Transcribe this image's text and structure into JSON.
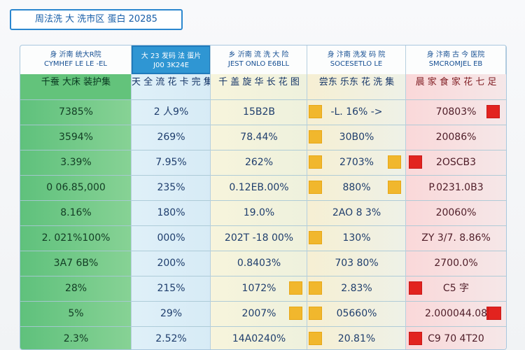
{
  "page": {
    "title": "周法洗 大 洗市区 蛋白 20285"
  },
  "chart_data": {
    "type": "table",
    "title": "周法洗 大 洗市区 蛋白 20285",
    "columns": [
      {
        "header": "身 沂南 统大R院",
        "subheader": "CYMHEF LE LE -EL",
        "group_label": "千蚕 大床 装护集"
      },
      {
        "header": "大 23 发码 法 蛋片",
        "subheader": "J00 3K24E",
        "group_label": "天 全 流 花 卡 完 集"
      },
      {
        "header": "乡 沂南 流 洗 大 险",
        "subheader": "JEST ONLO E6BLL",
        "group_label": "千 盖 旋 华 长 花 图"
      },
      {
        "header": "身 汴南 洗发 码 院",
        "subheader": "SOCESETLO LE",
        "group_label": "尝东 乐东 花 洗 集"
      },
      {
        "header": "身 汴南 古 今 医院",
        "subheader": "SMCROMJEL EB",
        "group_label": "晨 家 食 家 花 七 足"
      }
    ],
    "rows": [
      [
        "7385%",
        "2 人9%",
        "15B2B",
        "-L. 16% ->",
        "70803%"
      ],
      [
        "3594%",
        "269%",
        "78.44%",
        "30B0%",
        "20086%"
      ],
      [
        "3.39%",
        "7.95%",
        "262%",
        "2703%",
        "2OSCB3"
      ],
      [
        "0 06.85,000",
        "235%",
        "0.12EB.00%",
        "880%",
        "P.0231.0B3"
      ],
      [
        "8.16%",
        "180%",
        "19.0%",
        "2AO 8 3%",
        "20060%"
      ],
      [
        "2. 021%100%",
        "000%",
        "202T -18 00%",
        "130%",
        "ZY 3/7. 8.86%"
      ],
      [
        "3A7 6B%",
        "200%",
        "0.8403%",
        "703 80%",
        "2700.0%"
      ],
      [
        "28%",
        "215%",
        "1072%",
        "2.83%",
        "C5 字"
      ],
      [
        "5%",
        "29%",
        "2007%",
        "05660%",
        "2.000044.08"
      ],
      [
        "2.3%",
        "2.52%",
        "14A0240%",
        "20.81%",
        "C9 70 4T20"
      ]
    ],
    "highlighted_column": 1,
    "markers": [
      {
        "row": 0,
        "column": 3,
        "color": "#f1b72d"
      },
      {
        "row": 0,
        "column": 4,
        "color": "#e2231f"
      },
      {
        "row": 1,
        "column": 3,
        "color": "#f1b72d"
      },
      {
        "row": 2,
        "column": 3,
        "color": "#f1b72d"
      },
      {
        "row": 2,
        "column": 3,
        "color": "#f1b72d"
      },
      {
        "row": 2,
        "column": 4,
        "color": "#e2231f"
      },
      {
        "row": 3,
        "column": 3,
        "color": "#f1b72d"
      },
      {
        "row": 3,
        "column": 3,
        "color": "#f1b72d"
      },
      {
        "row": 5,
        "column": 3,
        "color": "#f1b72d"
      },
      {
        "row": 7,
        "column": 2,
        "color": "#f1b72d"
      },
      {
        "row": 7,
        "column": 3,
        "color": "#f1b72d"
      },
      {
        "row": 7,
        "column": 4,
        "color": "#e2231f"
      },
      {
        "row": 8,
        "column": 2,
        "color": "#f1b72d"
      },
      {
        "row": 8,
        "column": 3,
        "color": "#f1b72d"
      },
      {
        "row": 8,
        "column": 4,
        "color": "#e2231f"
      },
      {
        "row": 8,
        "column": 4,
        "color": "#e2231f"
      },
      {
        "row": 9,
        "column": 3,
        "color": "#f1b72d"
      },
      {
        "row": 9,
        "column": 4,
        "color": "#e2231f"
      }
    ]
  }
}
